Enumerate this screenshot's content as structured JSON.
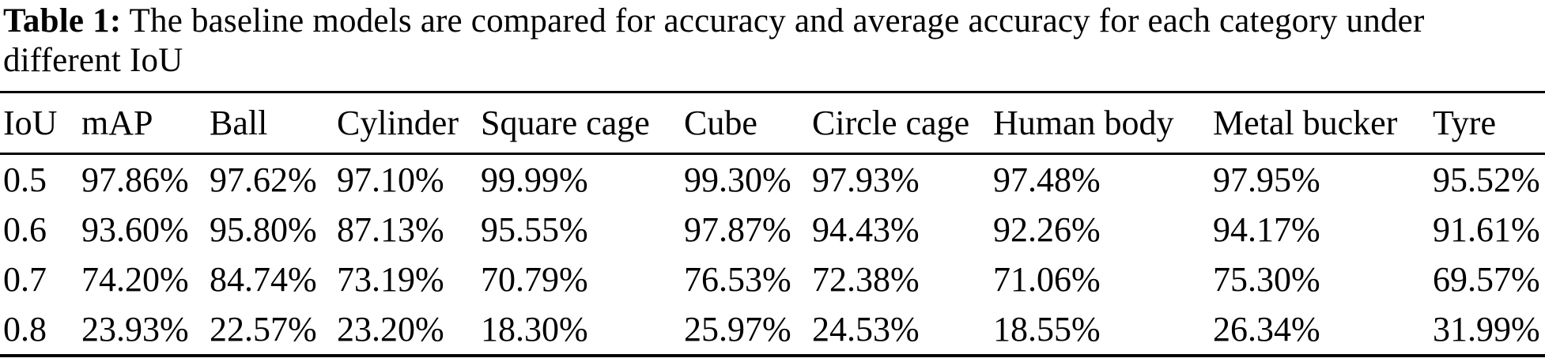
{
  "caption": {
    "label": "Table 1:",
    "text": "The baseline models are compared for accuracy and average accuracy for each category under different IoU"
  },
  "table": {
    "columns": [
      "IoU",
      "mAP",
      "Ball",
      "Cylinder",
      "Square cage",
      "Cube",
      "Circle cage",
      "Human body",
      "Metal bucker",
      "Tyre"
    ],
    "rows": [
      [
        "0.5",
        "97.86%",
        "97.62%",
        "97.10%",
        "99.99%",
        "99.30%",
        "97.93%",
        "97.48%",
        "97.95%",
        "95.52%"
      ],
      [
        "0.6",
        "93.60%",
        "95.80%",
        "87.13%",
        "95.55%",
        "97.87%",
        "94.43%",
        "92.26%",
        "94.17%",
        "91.61%"
      ],
      [
        "0.7",
        "74.20%",
        "84.74%",
        "73.19%",
        "70.79%",
        "76.53%",
        "72.38%",
        "71.06%",
        "75.30%",
        "69.57%"
      ],
      [
        "0.8",
        "23.93%",
        "22.57%",
        "23.20%",
        "18.30%",
        "25.97%",
        "24.53%",
        "18.55%",
        "26.34%",
        "31.99%"
      ]
    ]
  },
  "chart_data": {
    "type": "table",
    "title": "Table 1: The baseline models are compared for accuracy and average accuracy for each category under different IoU",
    "columns": [
      "IoU",
      "mAP",
      "Ball",
      "Cylinder",
      "Square cage",
      "Cube",
      "Circle cage",
      "Human body",
      "Metal bucker",
      "Tyre"
    ],
    "iou": [
      0.5,
      0.6,
      0.7,
      0.8
    ],
    "series": [
      {
        "name": "mAP",
        "values": [
          97.86,
          93.6,
          74.2,
          23.93
        ]
      },
      {
        "name": "Ball",
        "values": [
          97.62,
          95.8,
          84.74,
          22.57
        ]
      },
      {
        "name": "Cylinder",
        "values": [
          97.1,
          87.13,
          73.19,
          23.2
        ]
      },
      {
        "name": "Square cage",
        "values": [
          99.99,
          95.55,
          70.79,
          18.3
        ]
      },
      {
        "name": "Cube",
        "values": [
          99.3,
          97.87,
          76.53,
          25.97
        ]
      },
      {
        "name": "Circle cage",
        "values": [
          97.93,
          94.43,
          72.38,
          24.53
        ]
      },
      {
        "name": "Human body",
        "values": [
          97.48,
          92.26,
          71.06,
          18.55
        ]
      },
      {
        "name": "Metal bucker",
        "values": [
          97.95,
          94.17,
          75.3,
          26.34
        ]
      },
      {
        "name": "Tyre",
        "values": [
          95.52,
          91.61,
          69.57,
          31.99
        ]
      }
    ],
    "unit": "%"
  },
  "colors": {
    "background": "#ffffff",
    "text": "#000000",
    "rule": "#000000"
  }
}
